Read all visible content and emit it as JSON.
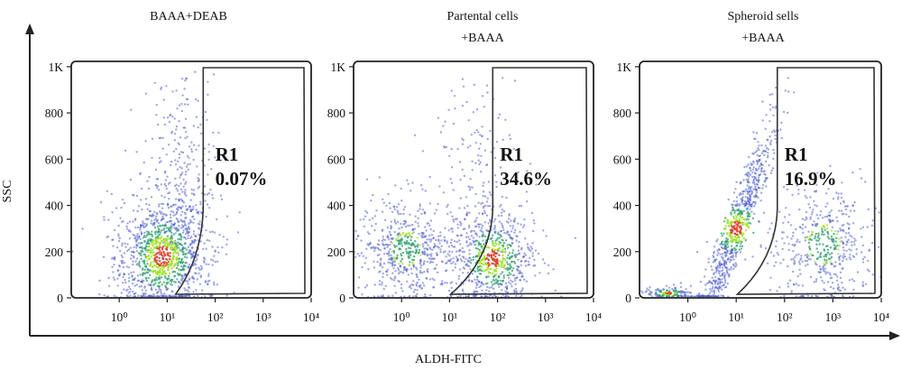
{
  "figure": {
    "x_axis_title": "ALDH-FITC",
    "y_axis_title": "SSC"
  },
  "chart_data": [
    {
      "type": "scatter",
      "title_lines": [
        "BAAA+DEAB"
      ],
      "xlabel": "ALDH-FITC",
      "ylabel": "SSC",
      "x_scale": "log",
      "xlim": [
        0.1,
        10000
      ],
      "ylim": [
        0,
        1023
      ],
      "x_ticks": [
        "10⁰",
        "10¹",
        "10²",
        "10³",
        "10⁴"
      ],
      "y_ticks": [
        "1K",
        "800",
        "600",
        "400",
        "200",
        "0"
      ],
      "gate": {
        "name": "R1",
        "value": "0.07%"
      },
      "populations": [
        {
          "center_log_x": 0.9,
          "center_y": 180,
          "spread_log_x": 0.5,
          "spread_y": 130,
          "weight": 0.8,
          "density": "high"
        },
        {
          "center_log_x": 1.3,
          "center_y": 520,
          "spread_log_x": 0.35,
          "spread_y": 230,
          "weight": 0.2,
          "density": "low"
        }
      ]
    },
    {
      "type": "scatter",
      "title_lines": [
        "Partental cells",
        "+BAAA"
      ],
      "xlabel": "ALDH-FITC",
      "ylabel": "SSC",
      "x_scale": "log",
      "xlim": [
        0.1,
        10000
      ],
      "ylim": [
        0,
        1023
      ],
      "x_ticks": [
        "10⁰",
        "10¹",
        "10²",
        "10³",
        "10⁴"
      ],
      "y_ticks": [
        "1K",
        "800",
        "600",
        "400",
        "200",
        "0"
      ],
      "gate": {
        "name": "R1",
        "value": "34.6%"
      },
      "populations": [
        {
          "center_log_x": 0.1,
          "center_y": 210,
          "spread_log_x": 0.5,
          "spread_y": 110,
          "weight": 0.4,
          "density": "medium"
        },
        {
          "center_log_x": 1.9,
          "center_y": 170,
          "spread_log_x": 0.45,
          "spread_y": 110,
          "weight": 0.5,
          "density": "high"
        },
        {
          "center_log_x": 1.5,
          "center_y": 600,
          "spread_log_x": 0.45,
          "spread_y": 200,
          "weight": 0.1,
          "density": "low"
        }
      ]
    },
    {
      "type": "scatter",
      "title_lines": [
        "Spheroid sells",
        "+BAAA"
      ],
      "xlabel": "ALDH-FITC",
      "ylabel": "SSC",
      "x_scale": "log",
      "xlim": [
        0.1,
        10000
      ],
      "ylim": [
        0,
        1023
      ],
      "x_ticks": [
        "10⁰",
        "10¹",
        "10²",
        "10³",
        "10⁴"
      ],
      "y_ticks": [
        "1K",
        "800",
        "600",
        "400",
        "200",
        "0"
      ],
      "gate": {
        "name": "R1",
        "value": "16.9%"
      },
      "populations": [
        {
          "center_log_x": 1.0,
          "center_y": 300,
          "spread_log_x": 0.4,
          "spread_y": 90,
          "weight": 0.55,
          "density": "high",
          "shape": "diagonal"
        },
        {
          "center_log_x": 2.8,
          "center_y": 230,
          "spread_log_x": 0.55,
          "spread_y": 130,
          "weight": 0.35,
          "density": "medium"
        },
        {
          "center_log_x": -0.4,
          "center_y": 20,
          "spread_log_x": 0.25,
          "spread_y": 15,
          "weight": 0.1,
          "density": "high"
        }
      ]
    }
  ],
  "colors": {
    "low": "#4f5fd6",
    "mid": "#2fa36b",
    "high": "#9fe320",
    "peak": "#e0402c",
    "frame": "#222222"
  }
}
